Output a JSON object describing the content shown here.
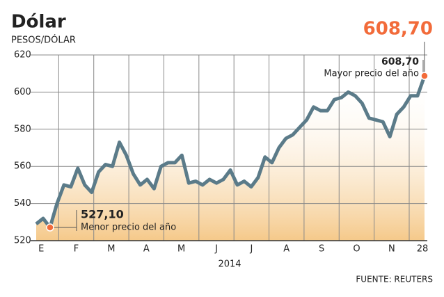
{
  "chart_data": {
    "type": "line",
    "title": "Dólar",
    "subtitle": "PESOS/DÓLAR",
    "xlabel": "2014",
    "source": "FUENTE: REUTERS",
    "xticklabels": [
      "E",
      "F",
      "M",
      "A",
      "M",
      "J",
      "J",
      "A",
      "S",
      "O",
      "N",
      "28"
    ],
    "series": [
      {
        "color": "#5b7b89",
        "values": [
          529,
          532,
          527.1,
          540,
          550,
          549,
          559,
          550,
          546,
          557,
          561,
          560,
          573,
          566,
          556,
          550,
          553,
          548,
          560,
          562,
          562,
          566,
          551,
          552,
          550,
          553,
          551,
          553,
          558,
          550,
          552,
          549,
          554,
          565,
          562,
          570,
          575,
          577,
          581,
          585,
          592,
          590,
          590,
          596,
          597,
          600,
          598,
          594,
          586,
          585,
          584,
          576,
          588,
          592,
          598,
          598,
          608.7
        ]
      }
    ],
    "ylim": [
      520,
      620
    ],
    "yticks": [
      520,
      540,
      560,
      580,
      600,
      620
    ],
    "grid": true,
    "annotations": [
      {
        "index": 56,
        "value": 608.7,
        "label": "608,70",
        "text": "Mayor precio del año"
      },
      {
        "index": 2,
        "value": 527.1,
        "label": "527,10",
        "text": "Menor precio del año"
      }
    ],
    "highlight_color": "#f26b3a"
  }
}
